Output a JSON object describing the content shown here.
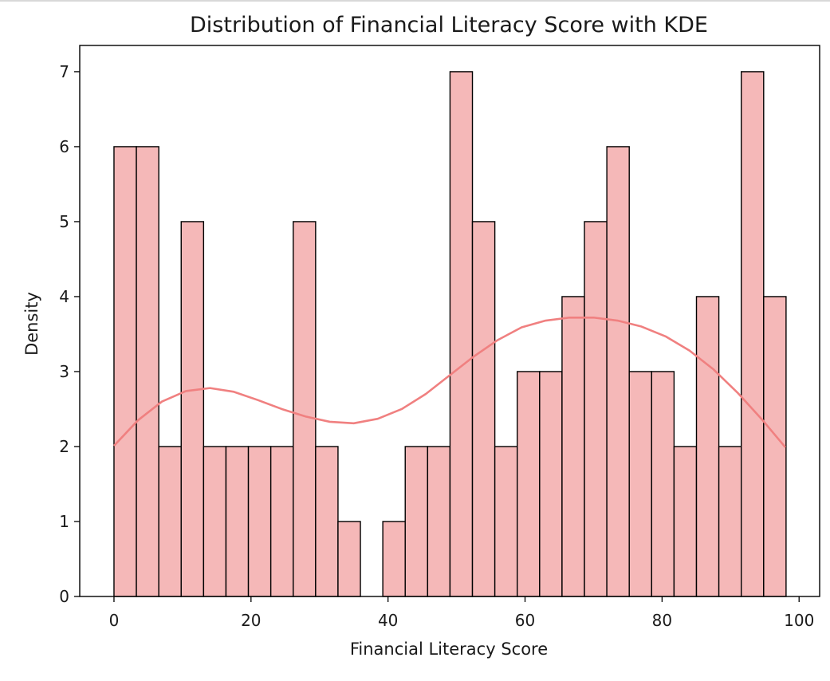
{
  "chart_data": {
    "type": "bar",
    "title": "Distribution of Financial Literacy Score with KDE",
    "xlabel": "Financial Literacy Score",
    "ylabel": "Density",
    "xlim": [
      -5,
      103
    ],
    "ylim": [
      0,
      7.35
    ],
    "xticks": [
      0,
      20,
      40,
      60,
      80,
      100
    ],
    "yticks": [
      0,
      1,
      2,
      3,
      4,
      5,
      6,
      7
    ],
    "grid": false,
    "bin_start": 0,
    "bin_width": 3.27,
    "values": [
      6,
      6,
      2,
      5,
      2,
      2,
      2,
      2,
      5,
      2,
      1,
      0,
      1,
      2,
      2,
      7,
      5,
      2,
      3,
      3,
      4,
      5,
      6,
      3,
      3,
      2,
      4,
      2,
      7,
      4
    ],
    "bar_color": "#f5b8b8",
    "bar_edge_color": "#000000",
    "kde_color": "#f08080",
    "kde": {
      "x": [
        0,
        3.5,
        7,
        10.5,
        14,
        17.5,
        21,
        24.5,
        28,
        31.5,
        35,
        38.5,
        42,
        45.5,
        49,
        52.5,
        56,
        59.5,
        63,
        66.5,
        70,
        73.5,
        77,
        80.5,
        84,
        87.5,
        91,
        94.5,
        98
      ],
      "y": [
        2.01,
        2.35,
        2.6,
        2.74,
        2.78,
        2.73,
        2.62,
        2.5,
        2.4,
        2.33,
        2.31,
        2.37,
        2.5,
        2.7,
        2.95,
        3.2,
        3.42,
        3.59,
        3.68,
        3.72,
        3.72,
        3.68,
        3.6,
        3.47,
        3.28,
        3.03,
        2.72,
        2.37,
        1.99
      ]
    }
  }
}
